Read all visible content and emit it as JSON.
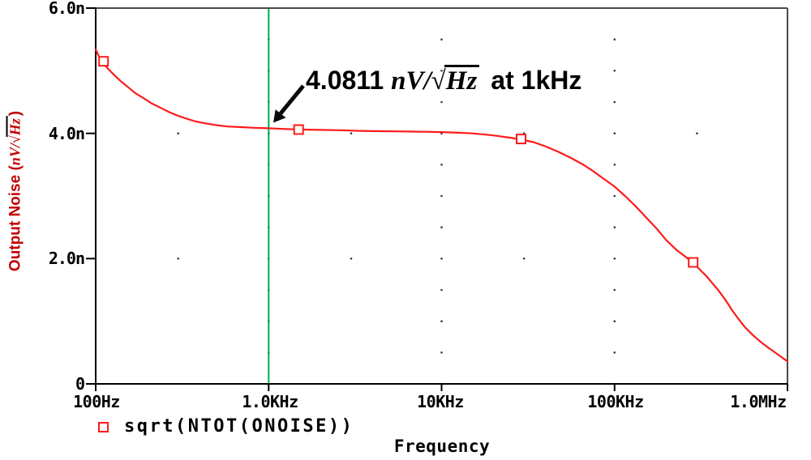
{
  "legend": {
    "series_label": "sqrt(NTOT(ONOISE))"
  },
  "chart_data": {
    "type": "line",
    "title": "",
    "x_axis": {
      "label": "Frequency",
      "scale": "log",
      "range_hz": [
        100,
        1000000
      ],
      "ticks": [
        {
          "hz": 100,
          "label": "100Hz"
        },
        {
          "hz": 1000,
          "label": "1.0KHz"
        },
        {
          "hz": 10000,
          "label": "10KHz"
        },
        {
          "hz": 100000,
          "label": "100KHz"
        },
        {
          "hz": 1000000,
          "label": "1.0MHz"
        }
      ]
    },
    "y_axis": {
      "label_prefix": "Output Noise (",
      "label_math_numerator": "nV",
      "label_math_divider": "/",
      "label_math_sqrt_sign": "√",
      "label_math_sqrt_arg": "Hz",
      "label_suffix": ")",
      "label_color": "#c00000",
      "range_nv": [
        0,
        6
      ],
      "ticks": [
        {
          "nv": 6,
          "label": "6.0n"
        },
        {
          "nv": 4,
          "label": "4.0n"
        },
        {
          "nv": 2,
          "label": "2.0n"
        },
        {
          "nv": 0,
          "label": "0"
        }
      ]
    },
    "grid": {
      "dot_color": "#3a3a3a",
      "vertical_dotted_lines_hz": [
        1000,
        10000,
        100000
      ],
      "vertical_dot_levels_nv": [
        0.5,
        1.0,
        1.5,
        2.0,
        2.5,
        3.0,
        3.5,
        4.0,
        4.5,
        5.0,
        5.5
      ],
      "horizontal_dotted_lines_nv": [
        2,
        4
      ],
      "horizontal_dot_positions_hz": [
        300,
        3000,
        30000,
        300000
      ]
    },
    "cursor": {
      "hz": 1000,
      "color": "#00ab50"
    },
    "series": [
      {
        "name": "sqrt(NTOT(ONOISE))",
        "color": "#ff1a1a",
        "points_hz_nv": [
          [
            100,
            5.34
          ],
          [
            104,
            5.24
          ],
          [
            110,
            5.13
          ],
          [
            118,
            5.03
          ],
          [
            128,
            4.93
          ],
          [
            140,
            4.83
          ],
          [
            155,
            4.73
          ],
          [
            170,
            4.64
          ],
          [
            190,
            4.56
          ],
          [
            210,
            4.48
          ],
          [
            240,
            4.4
          ],
          [
            270,
            4.33
          ],
          [
            300,
            4.28
          ],
          [
            340,
            4.23
          ],
          [
            380,
            4.19
          ],
          [
            430,
            4.16
          ],
          [
            500,
            4.13
          ],
          [
            580,
            4.11
          ],
          [
            680,
            4.1
          ],
          [
            800,
            4.09
          ],
          [
            1000,
            4.081
          ],
          [
            1250,
            4.07
          ],
          [
            1600,
            4.06
          ],
          [
            2000,
            4.055
          ],
          [
            2600,
            4.05
          ],
          [
            3400,
            4.04
          ],
          [
            4500,
            4.035
          ],
          [
            6000,
            4.03
          ],
          [
            8000,
            4.025
          ],
          [
            10000,
            4.02
          ],
          [
            12500,
            4.01
          ],
          [
            15000,
            4.0
          ],
          [
            18000,
            3.98
          ],
          [
            21000,
            3.96
          ],
          [
            25000,
            3.93
          ],
          [
            29000,
            3.9
          ],
          [
            34000,
            3.86
          ],
          [
            40000,
            3.79
          ],
          [
            47000,
            3.71
          ],
          [
            55000,
            3.62
          ],
          [
            65000,
            3.51
          ],
          [
            75000,
            3.4
          ],
          [
            87000,
            3.27
          ],
          [
            100000,
            3.15
          ],
          [
            115000,
            3.0
          ],
          [
            132000,
            2.84
          ],
          [
            152000,
            2.66
          ],
          [
            175000,
            2.48
          ],
          [
            200000,
            2.29
          ],
          [
            230000,
            2.13
          ],
          [
            260000,
            2.02
          ],
          [
            283000,
            1.94
          ],
          [
            310000,
            1.83
          ],
          [
            340000,
            1.72
          ],
          [
            370000,
            1.6
          ],
          [
            400000,
            1.49
          ],
          [
            440000,
            1.33
          ],
          [
            480000,
            1.17
          ],
          [
            520000,
            1.04
          ],
          [
            570000,
            0.9
          ],
          [
            630000,
            0.78
          ],
          [
            700000,
            0.67
          ],
          [
            780000,
            0.57
          ],
          [
            860000,
            0.49
          ],
          [
            930000,
            0.42
          ],
          [
            1000000,
            0.36
          ]
        ],
        "marker_points_hz_nv": [
          [
            111,
            5.15
          ],
          [
            1490,
            4.06
          ],
          [
            28800,
            3.91
          ],
          [
            285000,
            1.94
          ]
        ]
      }
    ],
    "annotation": {
      "value": "4.0811",
      "unit_numerator": "nV",
      "unit_divider": "/",
      "unit_sqrt_sign": "√",
      "unit_sqrt_arg": "Hz",
      "suffix": "at 1kHz",
      "points_to_hz": 1000,
      "points_to_nv": 4.0811
    }
  }
}
